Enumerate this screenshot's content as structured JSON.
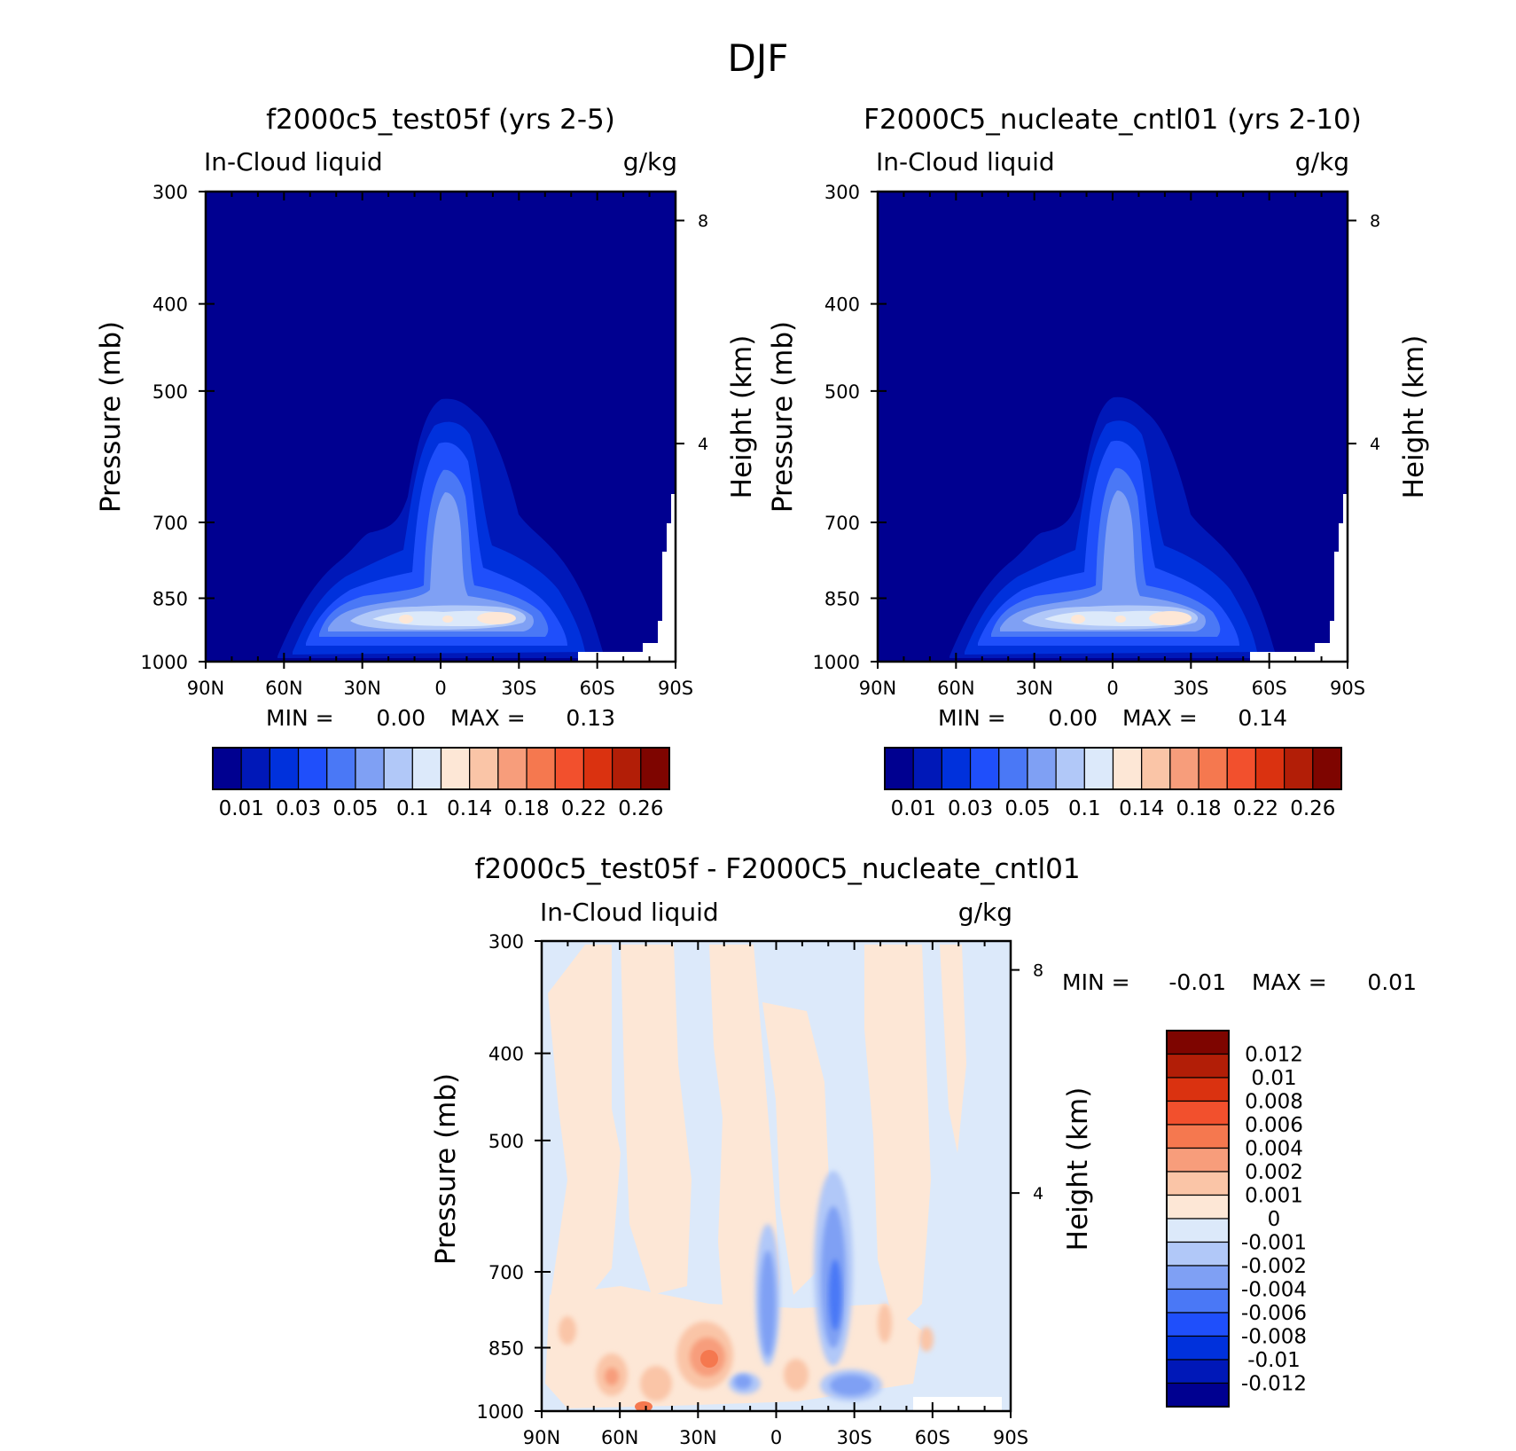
{
  "page_title": "DJF",
  "chart_data": [
    {
      "type": "heatmap",
      "title": "f2000c5_test05f (yrs 2-5)",
      "left_label": "In-Cloud liquid",
      "right_label": "g/kg",
      "ylabel": "Pressure (mb)",
      "ylabel_right": "Height (km)",
      "x_ticks": [
        "90N",
        "60N",
        "30N",
        "0",
        "30S",
        "60S",
        "90S"
      ],
      "y_ticks": [
        "300",
        "400",
        "500",
        "700",
        "850",
        "1000"
      ],
      "y_right_ticks": [
        "8",
        "4"
      ],
      "ylim": [
        1000,
        300
      ],
      "log_pressure_axis": true,
      "stats": {
        "min_label": "MIN =",
        "min": "0.00",
        "max_label": "MAX =",
        "max": "0.13"
      },
      "colorbar": {
        "orientation": "horizontal",
        "labels": [
          "0.01",
          "0.03",
          "0.05",
          "0.1",
          "0.14",
          "0.18",
          "0.22",
          "0.26"
        ],
        "colors": [
          "#000090",
          "#0018b8",
          "#0031dc",
          "#1f4ffb",
          "#4a78f6",
          "#7fa0f4",
          "#b1c8f8",
          "#dce9fa",
          "#fde7d6",
          "#fac5a7",
          "#f79d7b",
          "#f5784f",
          "#f2502d",
          "#da3210",
          "#b21e07",
          "#7e0500"
        ]
      }
    },
    {
      "type": "heatmap",
      "title": "F2000C5_nucleate_cntl01 (yrs 2-10)",
      "left_label": "In-Cloud liquid",
      "right_label": "g/kg",
      "ylabel": "Pressure (mb)",
      "ylabel_right": "Height (km)",
      "x_ticks": [
        "90N",
        "60N",
        "30N",
        "0",
        "30S",
        "60S",
        "90S"
      ],
      "y_ticks": [
        "300",
        "400",
        "500",
        "700",
        "850",
        "1000"
      ],
      "y_right_ticks": [
        "8",
        "4"
      ],
      "ylim": [
        1000,
        300
      ],
      "log_pressure_axis": true,
      "stats": {
        "min_label": "MIN =",
        "min": "0.00",
        "max_label": "MAX =",
        "max": "0.14"
      },
      "colorbar": {
        "orientation": "horizontal",
        "labels": [
          "0.01",
          "0.03",
          "0.05",
          "0.1",
          "0.14",
          "0.18",
          "0.22",
          "0.26"
        ],
        "colors": [
          "#000090",
          "#0018b8",
          "#0031dc",
          "#1f4ffb",
          "#4a78f6",
          "#7fa0f4",
          "#b1c8f8",
          "#dce9fa",
          "#fde7d6",
          "#fac5a7",
          "#f79d7b",
          "#f5784f",
          "#f2502d",
          "#da3210",
          "#b21e07",
          "#7e0500"
        ]
      }
    },
    {
      "type": "heatmap",
      "title": "f2000c5_test05f - F2000C5_nucleate_cntl01",
      "left_label": "In-Cloud liquid",
      "right_label": "g/kg",
      "ylabel": "Pressure (mb)",
      "ylabel_right": "Height (km)",
      "x_ticks": [
        "90N",
        "60N",
        "30N",
        "0",
        "30S",
        "60S",
        "90S"
      ],
      "y_ticks": [
        "300",
        "400",
        "500",
        "700",
        "850",
        "1000"
      ],
      "y_right_ticks": [
        "8",
        "4"
      ],
      "ylim": [
        1000,
        300
      ],
      "log_pressure_axis": true,
      "stats": {
        "min_label": "MIN =",
        "min": "-0.01",
        "max_label": "MAX =",
        "max": "0.01"
      },
      "colorbar": {
        "orientation": "vertical",
        "labels": [
          "0.012",
          "0.01",
          "0.008",
          "0.006",
          "0.004",
          "0.002",
          "0.001",
          "0",
          "-0.001",
          "-0.002",
          "-0.004",
          "-0.006",
          "-0.008",
          "-0.01",
          "-0.012"
        ],
        "colors": [
          "#7e0500",
          "#b21e07",
          "#da3210",
          "#f2502d",
          "#f5784f",
          "#f79d7b",
          "#fac5a7",
          "#fde7d6",
          "#dce9fa",
          "#b1c8f8",
          "#7fa0f4",
          "#4a78f6",
          "#1f4ffb",
          "#0031dc",
          "#0018b8",
          "#000090"
        ]
      }
    }
  ]
}
